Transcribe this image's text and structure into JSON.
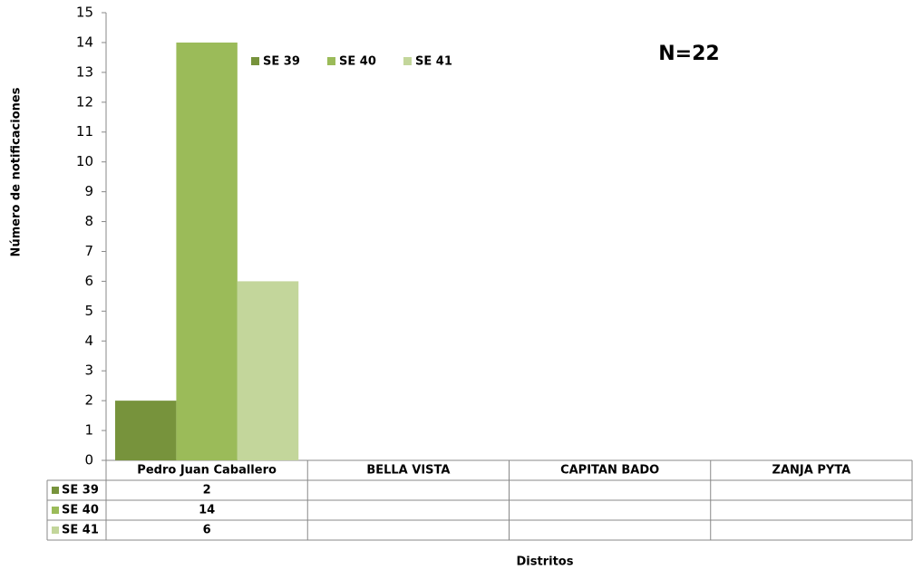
{
  "chart_data": {
    "type": "bar",
    "annotation": "N=22",
    "y_label": "Número de notificaciones",
    "x_label": "Distritos",
    "categories": [
      "Pedro Juan Caballero",
      "BELLA VISTA",
      "CAPITAN BADO",
      "ZANJA PYTA"
    ],
    "series": [
      {
        "name": "SE 39",
        "color": "#77933c",
        "values": [
          2,
          null,
          null,
          null
        ]
      },
      {
        "name": "SE 40",
        "color": "#9bbb59",
        "values": [
          14,
          null,
          null,
          null
        ]
      },
      {
        "name": "SE 41",
        "color": "#c3d69b",
        "values": [
          6,
          null,
          null,
          null
        ]
      }
    ],
    "ylim": [
      0,
      15
    ],
    "yticks": [
      0,
      1,
      2,
      3,
      4,
      5,
      6,
      7,
      8,
      9,
      10,
      11,
      12,
      13,
      14,
      15
    ]
  }
}
